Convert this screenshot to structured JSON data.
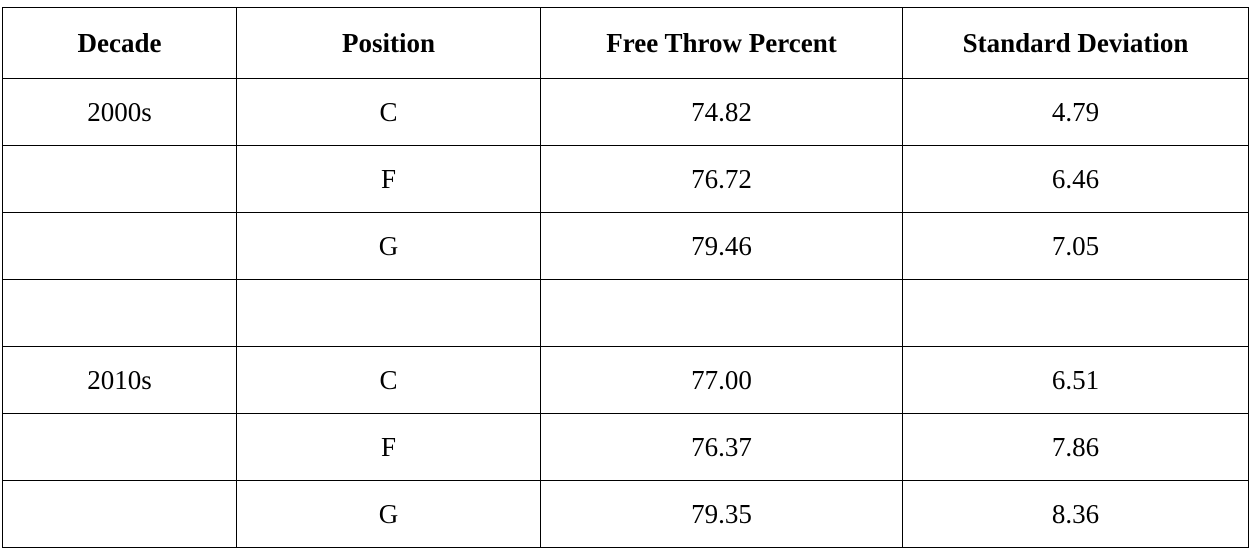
{
  "table": {
    "headers": [
      "Decade",
      "Position",
      "Free Throw Percent",
      "Standard Deviation"
    ],
    "rows": [
      [
        "2000s",
        "C",
        "74.82",
        "4.79"
      ],
      [
        "",
        "F",
        "76.72",
        "6.46"
      ],
      [
        "",
        "G",
        "79.46",
        "7.05"
      ],
      [
        "",
        "",
        "",
        ""
      ],
      [
        "2010s",
        "C",
        "77.00",
        "6.51"
      ],
      [
        "",
        "F",
        "76.37",
        "7.86"
      ],
      [
        "",
        "G",
        "79.35",
        "8.36"
      ]
    ]
  }
}
